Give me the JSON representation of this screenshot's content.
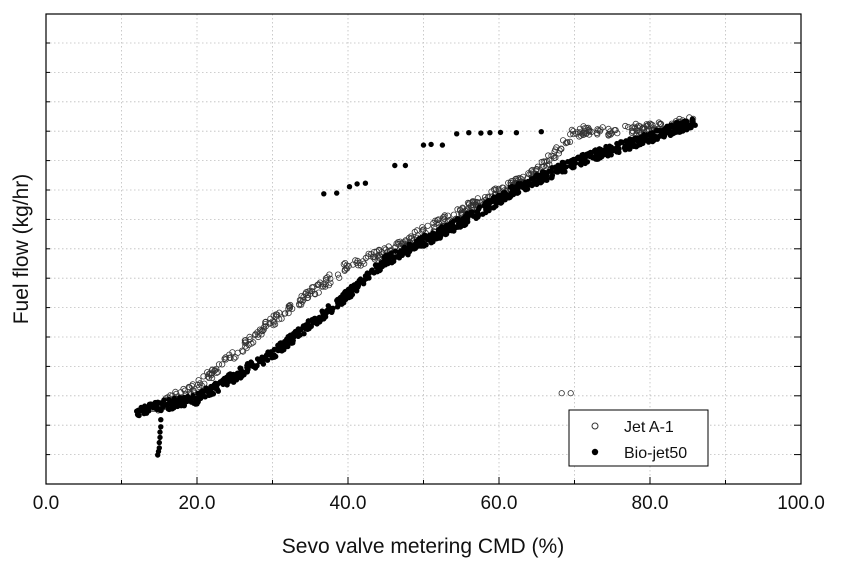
{
  "chart_data": {
    "type": "scatter",
    "xlabel": "Sevo valve metering CMD (%)",
    "ylabel": "Fuel flow (kg/hr)",
    "xlim": [
      0,
      100
    ],
    "x_ticks": [
      "0.0",
      "20.0",
      "40.0",
      "60.0",
      "80.0",
      "100.0"
    ],
    "y_tick_labels_shown": false,
    "grid": true,
    "legend": "bottom-right",
    "series": [
      {
        "name": "Jet A-1",
        "marker": "open-circle",
        "color": "#333333",
        "trend": [
          [
            14,
            0.13
          ],
          [
            20,
            0.195
          ],
          [
            30,
            0.38
          ],
          [
            40,
            0.535
          ],
          [
            45,
            0.575
          ],
          [
            55,
            0.69
          ],
          [
            65,
            0.8
          ],
          [
            70,
            0.915
          ],
          [
            80,
            0.925
          ],
          [
            86,
            0.945
          ]
        ],
        "outliers": [
          [
            68.3,
            0.175
          ],
          [
            69.5,
            0.175
          ]
        ]
      },
      {
        "name": "Bio-jet50",
        "marker": "filled-circle",
        "color": "#000000",
        "trend": [
          [
            12,
            0.125
          ],
          [
            20,
            0.16
          ],
          [
            30,
            0.285
          ],
          [
            40,
            0.455
          ],
          [
            45,
            0.55
          ],
          [
            55,
            0.66
          ],
          [
            62,
            0.75
          ],
          [
            70,
            0.83
          ],
          [
            80,
            0.9
          ],
          [
            86,
            0.945
          ]
        ],
        "low_tail": [
          [
            14.8,
            0.0
          ],
          [
            14.9,
            0.01
          ],
          [
            15.0,
            0.02
          ],
          [
            15.0,
            0.035
          ],
          [
            15.1,
            0.05
          ],
          [
            15.1,
            0.065
          ],
          [
            15.2,
            0.08
          ],
          [
            15.2,
            0.1
          ]
        ],
        "outliers": [
          [
            36.8,
            0.74
          ],
          [
            38.5,
            0.742
          ],
          [
            40.2,
            0.76
          ],
          [
            41.2,
            0.768
          ],
          [
            42.3,
            0.77
          ],
          [
            46.2,
            0.82
          ],
          [
            47.6,
            0.82
          ],
          [
            50.0,
            0.878
          ],
          [
            51.0,
            0.88
          ],
          [
            52.5,
            0.878
          ],
          [
            54.4,
            0.91
          ],
          [
            56.0,
            0.913
          ],
          [
            57.6,
            0.912
          ],
          [
            58.8,
            0.913
          ],
          [
            60.2,
            0.914
          ],
          [
            62.3,
            0.913
          ],
          [
            65.6,
            0.916
          ]
        ]
      }
    ]
  }
}
